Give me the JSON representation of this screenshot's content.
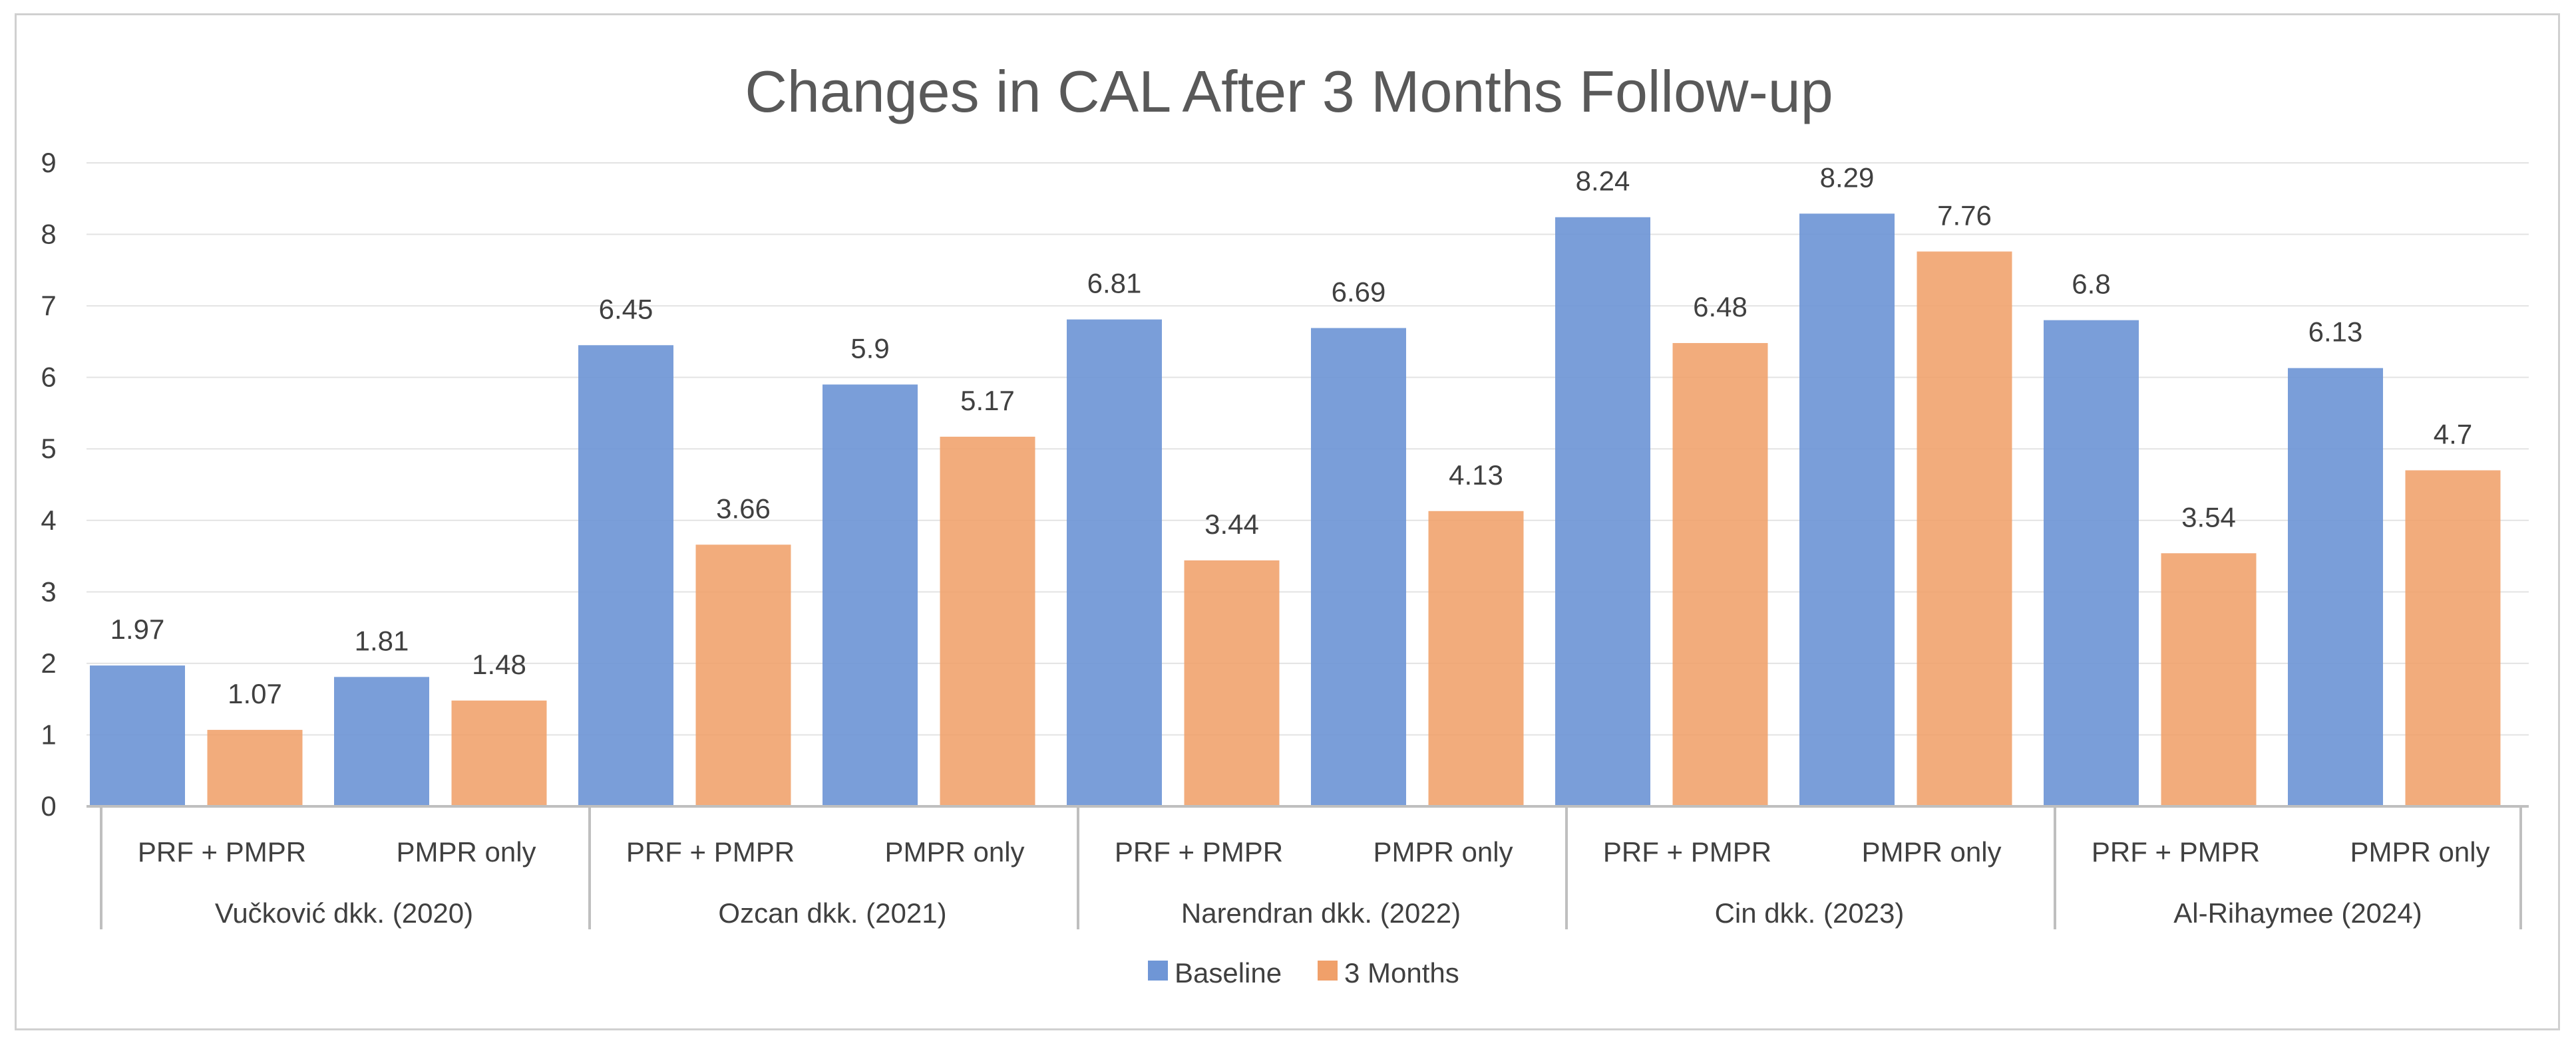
{
  "chart_data": {
    "type": "bar",
    "title": "Changes in CAL After 3 Months Follow-up",
    "xlabel": "",
    "ylabel": "",
    "ylim": [
      0,
      9
    ],
    "yticks": [
      "0",
      "1",
      "2",
      "3",
      "4",
      "5",
      "6",
      "7",
      "8",
      "9"
    ],
    "grid": true,
    "legend_position": "bottom",
    "groups": [
      {
        "label": "Vučković dkk. (2020)",
        "categories": [
          "PRF + PMPR",
          "PMPR only"
        ]
      },
      {
        "label": "Ozcan dkk. (2021)",
        "categories": [
          "PRF + PMPR",
          "PMPR only"
        ]
      },
      {
        "label": "Narendran dkk. (2022)",
        "categories": [
          "PRF + PMPR",
          "PMPR only"
        ]
      },
      {
        "label": "Cin dkk. (2023)",
        "categories": [
          "PRF + PMPR",
          "PMPR only"
        ]
      },
      {
        "label": "Al-Rihaymee (2024)",
        "categories": [
          "PRF + PMPR",
          "PMPR only"
        ]
      }
    ],
    "series": [
      {
        "name": "Baseline",
        "color": "#6f96d6",
        "values": [
          1.97,
          1.81,
          6.45,
          5.9,
          6.81,
          6.69,
          8.24,
          8.29,
          6.8,
          6.13
        ],
        "labels": [
          "1.97",
          "1.81",
          "6.45",
          "5.9",
          "6.81",
          "6.69",
          "8.24",
          "8.29",
          "6.8",
          "6.13"
        ]
      },
      {
        "name": "3 Months",
        "color": "#f0a06a",
        "values": [
          1.07,
          1.48,
          3.66,
          5.17,
          3.44,
          4.13,
          6.48,
          7.76,
          3.54,
          4.7
        ],
        "labels": [
          "1.07",
          "1.48",
          "3.66",
          "5.17",
          "3.44",
          "4.13",
          "6.48",
          "7.76",
          "3.54",
          "4.7"
        ]
      }
    ]
  }
}
